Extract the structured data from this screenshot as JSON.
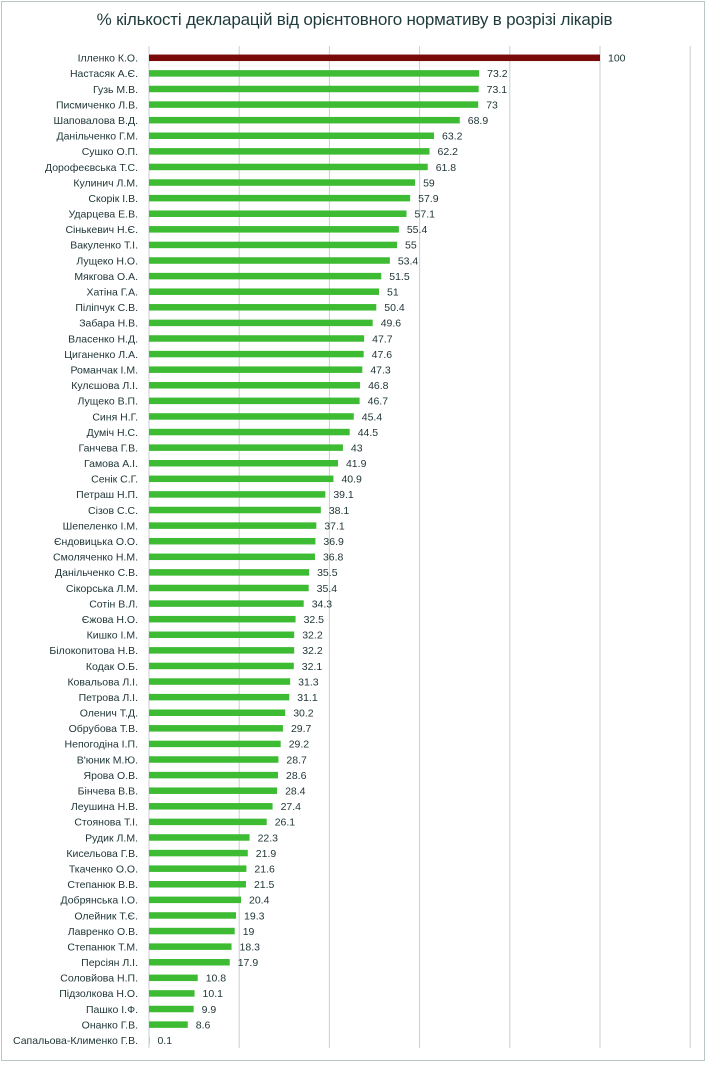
{
  "chart_data": {
    "type": "bar",
    "orientation": "horizontal",
    "title": "% кількості декларацій від орієнтовного нормативу в розрізі лікарів",
    "xlabel": "",
    "ylabel": "",
    "xlim": [
      0,
      120
    ],
    "x_gridlines": [
      0,
      20,
      40,
      60,
      80,
      100,
      120
    ],
    "grid": true,
    "legend": "none",
    "colors": {
      "default": "#3dbb33",
      "highlight": "#7a0a0a",
      "grid": "#c7cfd0",
      "border": "#b9c7c9"
    },
    "highlight_index": 0,
    "categories": [
      "Ілленко К.О.",
      "Настасяк А.Є.",
      "Гузь М.В.",
      "Писмиченко Л.В.",
      "Шаповалова В.Д.",
      "Данільченко Г.М.",
      "Сушко О.П.",
      "Дорофеєвська Т.С.",
      "Кулинич  Л.М.",
      "Скорік І.В.",
      "Ударцева Е.В.",
      "Сінькевич Н.Є.",
      "Вакуленко Т.І.",
      "Лущеко Н.О.",
      "Мякгова О.А.",
      "Хатіна Г.А.",
      "Піліпчук С.В.",
      "Забара Н.В.",
      "Власенко Н.Д.",
      "Циганенко Л.А.",
      "Романчак І.М.",
      "Кулєшова Л.І.",
      "Лущеко В.П.",
      "Синя  Н.Г.",
      "Думіч Н.С.",
      "Ганчева Г.В.",
      "Гамова А.І.",
      "Сенік С.Г.",
      "Петраш Н.П.",
      "Сізов С.С.",
      "Шепеленко І.М.",
      "Єндовицька О.О.",
      "Смоляченко Н.М.",
      "Данільченко С.В.",
      "Сікорська Л.М.",
      "Сотін В.Л.",
      "Єжова Н.О.",
      "Кишко І.М.",
      "Білокопитова Н.В.",
      "Кодак О.Б.",
      "Ковальова Л.І.",
      "Петрова Л.І.",
      "Оленич Т.Д.",
      "Обрубова Т.В.",
      "Непогодіна І.П.",
      "В'юник М.Ю.",
      "Ярова О.В.",
      "Бінчева В.В.",
      "Леушина Н.В.",
      "Стоянова Т.І.",
      "Рудик Л.М.",
      "Кисельова Г.В.",
      "Ткаченко О.О.",
      "Степанюк В.В.",
      "Добрянська І.О.",
      "Олейник Т.Є.",
      "Лавренко О.В.",
      "Степанюк Т.М.",
      "Персіян Л.І.",
      "Соловйова Н.П.",
      "Підзолкова Н.О.",
      "Пашко І.Ф.",
      "Онанко Г.В.",
      "Сапальова-Клименко Г.В."
    ],
    "values": [
      100,
      73.2,
      73.1,
      73,
      68.9,
      63.2,
      62.2,
      61.8,
      59,
      57.9,
      57.1,
      55.4,
      55,
      53.4,
      51.5,
      51,
      50.4,
      49.6,
      47.7,
      47.6,
      47.3,
      46.8,
      46.7,
      45.4,
      44.5,
      43,
      41.9,
      40.9,
      39.1,
      38.1,
      37.1,
      36.9,
      36.8,
      35.5,
      35.4,
      34.3,
      32.5,
      32.2,
      32.2,
      32.1,
      31.3,
      31.1,
      30.2,
      29.7,
      29.2,
      28.7,
      28.6,
      28.4,
      27.4,
      26.1,
      22.3,
      21.9,
      21.6,
      21.5,
      20.4,
      19.3,
      19,
      18.3,
      17.9,
      10.8,
      10.1,
      9.9,
      8.6,
      0.1
    ],
    "value_labels": [
      "100",
      "73.2",
      "73.1",
      "73",
      "68.9",
      "63.2",
      "62.2",
      "61.8",
      "59",
      "57.9",
      "57.1",
      "55.4",
      "55",
      "53.4",
      "51.5",
      "51",
      "50.4",
      "49.6",
      "47.7",
      "47.6",
      "47.3",
      "46.8",
      "46.7",
      "45.4",
      "44.5",
      "43",
      "41.9",
      "40.9",
      "39.1",
      "38.1",
      "37.1",
      "36.9",
      "36.8",
      "35.5",
      "35.4",
      "34.3",
      "32.5",
      "32.2",
      "32.2",
      "32.1",
      "31.3",
      "31.1",
      "30.2",
      "29.7",
      "29.2",
      "28.7",
      "28.6",
      "28.4",
      "27.4",
      "26.1",
      "22.3",
      "21.9",
      "21.6",
      "21.5",
      "20.4",
      "19.3",
      "19",
      "18.3",
      "17.9",
      "10.8",
      "10.1",
      "9.9",
      "8.6",
      "0.1"
    ]
  }
}
